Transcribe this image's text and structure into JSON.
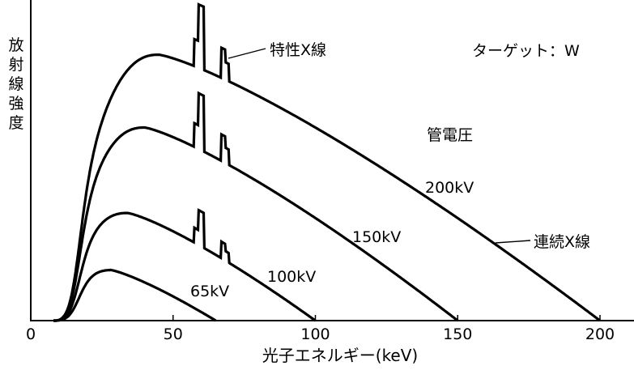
{
  "chart_data": {
    "type": "line",
    "xlabel": "光子エネルギー(keV)",
    "ylabel": "放射線強度",
    "xlim": [
      0,
      200
    ],
    "ylim": [
      0,
      1
    ],
    "x_ticks": [
      "0",
      "50",
      "100",
      "150",
      "200"
    ],
    "x_tick_values": [
      0,
      50,
      100,
      150,
      200
    ],
    "grid": false,
    "series": [
      {
        "name": "200kV",
        "kvp": 200,
        "peak": 0.84,
        "peak_x": 45,
        "char_scale": 1.0
      },
      {
        "name": "150kV",
        "kvp": 150,
        "peak": 0.61,
        "peak_x": 40,
        "char_scale": 0.88
      },
      {
        "name": "100kV",
        "kvp": 100,
        "peak": 0.34,
        "peak_x": 34,
        "char_scale": 0.55
      },
      {
        "name": "65kV",
        "kvp": 65,
        "peak": 0.16,
        "peak_x": 28,
        "char_scale": 0
      }
    ],
    "annotations": {
      "characteristic": "特性X線",
      "target": "ターゲット：W",
      "tube_voltage": "管電圧",
      "continuous": "連続X線"
    }
  }
}
